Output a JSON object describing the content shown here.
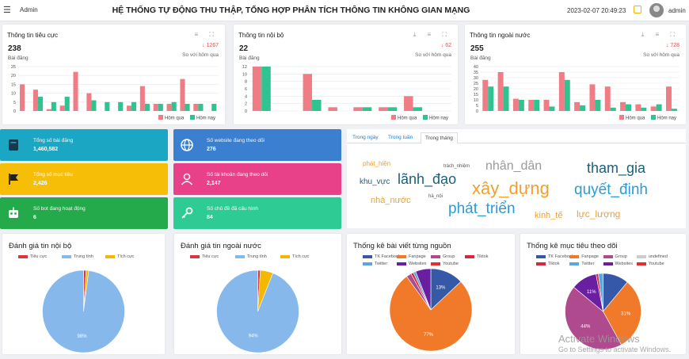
{
  "topbar": {
    "menu_icon": "☰",
    "user_left": "Admin",
    "title": "HỆ THỐNG TỰ ĐỘNG THU THẬP, TỔNG HỢP PHÂN TÍCH THÔNG TIN KHÔNG GIAN MẠNG",
    "datetime": "2023-02-07 20:49:23",
    "user_right": "admin"
  },
  "stats": [
    {
      "title": "Thông tin tiêu cực",
      "tools": "≡ ⛶",
      "total": "238",
      "unit": "Bài đăng",
      "delta": "↓ 1267",
      "compare": "So với hôm qua",
      "ymax": 25,
      "yticks": [
        "25",
        "20",
        "15",
        "10",
        "5",
        "0"
      ],
      "legend": [
        "Hôm qua",
        "Hôm nay"
      ],
      "colors": [
        "#f07c86",
        "#2ec38f"
      ],
      "series": [
        {
          "name": "Hôm qua",
          "values": [
            15,
            12,
            1,
            3,
            22,
            10,
            0,
            0,
            3,
            14,
            4,
            4,
            18,
            4,
            0
          ]
        },
        {
          "name": "Hôm nay",
          "values": [
            0,
            8,
            5,
            8,
            0,
            6,
            5,
            5,
            5,
            4,
            4,
            5,
            4,
            4,
            4
          ]
        }
      ]
    },
    {
      "title": "Thông tin nội bộ",
      "tools": "⤓ ≡ ⛶",
      "total": "22",
      "unit": "Bài đăng",
      "delta": "↓ 62",
      "compare": "So với hôm qua",
      "ymax": 12,
      "yticks": [
        "12",
        "10",
        "8",
        "6",
        "4",
        "2",
        "0"
      ],
      "legend": [
        "Hôm qua",
        "Hôm nay"
      ],
      "colors": [
        "#f07c86",
        "#2ec38f"
      ],
      "series": [
        {
          "name": "Hôm qua",
          "values": [
            12,
            0,
            10,
            1,
            1,
            1,
            4,
            0
          ]
        },
        {
          "name": "Hôm nay",
          "values": [
            12,
            0,
            3,
            0,
            1,
            1,
            1,
            0
          ]
        }
      ]
    },
    {
      "title": "Thông tin ngoài nước",
      "tools": "⤓ ≡ ⛶",
      "total": "255",
      "unit": "Bài đăng",
      "delta": "↓ 728",
      "compare": "So với hôm qua",
      "ymax": 40,
      "yticks": [
        "40",
        "35",
        "30",
        "25",
        "20",
        "15",
        "10",
        "5",
        "0"
      ],
      "legend": [
        "Hôm qua",
        "Hôm nay"
      ],
      "colors": [
        "#f07c86",
        "#2ec38f"
      ],
      "series": [
        {
          "name": "Hôm qua",
          "values": [
            28,
            35,
            11,
            10,
            10,
            35,
            8,
            24,
            22,
            8,
            6,
            4,
            22
          ]
        },
        {
          "name": "Hôm nay",
          "values": [
            22,
            22,
            10,
            10,
            4,
            28,
            5,
            10,
            3,
            6,
            3,
            6,
            2
          ]
        }
      ]
    }
  ],
  "tiles": [
    {
      "label": "Tổng số bài đăng",
      "value": "1,460,582",
      "color": "#1ba7c4",
      "icon": "book-icon"
    },
    {
      "label": "Số website đang theo dõi",
      "value": "276",
      "color": "#3a7fd0",
      "icon": "globe-icon"
    },
    {
      "label": "Tổng số mục tiêu",
      "value": "2,426",
      "color": "#f7be08",
      "icon": "flag-icon"
    },
    {
      "label": "Số tài khoản đang theo dõi",
      "value": "2,147",
      "color": "#e8418a",
      "icon": "user-icon"
    },
    {
      "label": "Số bot đang hoạt động",
      "value": "6",
      "color": "#24aa4a",
      "icon": "robot-icon"
    },
    {
      "label": "Số chủ đề đã cấu hình",
      "value": "84",
      "color": "#2ecc94",
      "icon": "key-icon"
    }
  ],
  "word_cloud": {
    "tabs": [
      "Trong ngày",
      "Trong tuần",
      "Trong tháng"
    ],
    "active_tab": 2,
    "words": [
      {
        "text": "phát_hiện",
        "color": "#f0a030",
        "size": 8
      },
      {
        "text": "trách_nhiệm",
        "color": "#555",
        "size": 6
      },
      {
        "text": "nhân_dân",
        "color": "#9a9a9a",
        "size": 16
      },
      {
        "text": "tham_gia",
        "color": "#1b5f7a",
        "size": 18
      },
      {
        "text": "khu_vực",
        "color": "#1b5f7a",
        "size": 10
      },
      {
        "text": "lãnh_đạo",
        "color": "#1b5f7a",
        "size": 18
      },
      {
        "text": "xây_dựng",
        "color": "#f0a030",
        "size": 22
      },
      {
        "text": "quyết_định",
        "color": "#2b9bd6",
        "size": 19
      },
      {
        "text": "nhà_nước",
        "color": "#f0a030",
        "size": 11
      },
      {
        "text": "hà_nội",
        "color": "#555",
        "size": 6
      },
      {
        "text": "phát_triển",
        "color": "#2b9bd6",
        "size": 19
      },
      {
        "text": "kinh_tế",
        "color": "#f0a030",
        "size": 11
      },
      {
        "text": "lực_lượng",
        "color": "#f0a030",
        "size": 12
      }
    ]
  },
  "pies": [
    {
      "title": "Đánh giá tin nội bộ",
      "legend": [
        {
          "name": "Tiêu cực",
          "color": "#d9363e"
        },
        {
          "name": "Trung tính",
          "color": "#86b8ec"
        },
        {
          "name": "Tích cực",
          "color": "#f5b800"
        }
      ],
      "slices": [
        {
          "name": "Tiêu cực",
          "value": 1,
          "color": "#d9363e",
          "label": ""
        },
        {
          "name": "Tích cực",
          "value": 1,
          "color": "#f5b800",
          "label": ""
        },
        {
          "name": "Trung tính",
          "value": 98,
          "color": "#86b8ec",
          "label": "98%"
        }
      ]
    },
    {
      "title": "Đánh giá tin ngoài nước",
      "legend": [
        {
          "name": "Tiêu cực",
          "color": "#d9363e"
        },
        {
          "name": "Trung tính",
          "color": "#86b8ec"
        },
        {
          "name": "Tích cực",
          "color": "#f5b800"
        }
      ],
      "slices": [
        {
          "name": "Tiêu cực",
          "value": 1,
          "color": "#d9363e",
          "label": ""
        },
        {
          "name": "Tích cực",
          "value": 5,
          "color": "#f5b800",
          "label": ""
        },
        {
          "name": "Trung tính",
          "value": 94,
          "color": "#86b8ec",
          "label": "94%"
        }
      ]
    },
    {
      "title": "Thống kê bài viết từng nguồn",
      "legend": [
        {
          "name": "TK Facebook",
          "color": "#3559a7"
        },
        {
          "name": "Fanpage",
          "color": "#f07a2a"
        },
        {
          "name": "Group",
          "color": "#b04a8e"
        },
        {
          "name": "Tiktok",
          "color": "#d8283c"
        },
        {
          "name": "Twitter",
          "color": "#5aa7e0"
        },
        {
          "name": "Websites",
          "color": "#6a1fa0"
        },
        {
          "name": "Youtube",
          "color": "#e03030"
        }
      ],
      "slices": [
        {
          "name": "TK Facebook",
          "value": 13,
          "color": "#3559a7",
          "label": "13%"
        },
        {
          "name": "Fanpage",
          "value": 77,
          "color": "#f07a2a",
          "label": "77%"
        },
        {
          "name": "Group",
          "value": 2,
          "color": "#b04a8e",
          "label": ""
        },
        {
          "name": "Tiktok",
          "value": 1,
          "color": "#d8283c",
          "label": ""
        },
        {
          "name": "Twitter",
          "value": 1,
          "color": "#5aa7e0",
          "label": ""
        },
        {
          "name": "Websites",
          "value": 6,
          "color": "#6a1fa0",
          "label": ""
        }
      ]
    },
    {
      "title": "Thống kê mục tiêu theo dõi",
      "legend": [
        {
          "name": "TK Facebook",
          "color": "#3559a7"
        },
        {
          "name": "Fanpage",
          "color": "#f07a2a"
        },
        {
          "name": "Group",
          "color": "#b04a8e"
        },
        {
          "name": "undefined",
          "color": "#cccccc"
        },
        {
          "name": "Tiktok",
          "color": "#d8283c"
        },
        {
          "name": "Twitter",
          "color": "#5aa7e0"
        },
        {
          "name": "Websites",
          "color": "#6a1fa0"
        },
        {
          "name": "Youtube",
          "color": "#e03030"
        }
      ],
      "slices": [
        {
          "name": "TK Facebook",
          "value": 11,
          "color": "#3559a7",
          "label": ""
        },
        {
          "name": "Fanpage",
          "value": 31,
          "color": "#f07a2a",
          "label": "31%"
        },
        {
          "name": "Group",
          "value": 44,
          "color": "#b04a8e",
          "label": "44%"
        },
        {
          "name": "Websites",
          "value": 11,
          "color": "#6a1fa0",
          "label": "11%"
        },
        {
          "name": "Tiktok",
          "value": 1,
          "color": "#d8283c",
          "label": ""
        },
        {
          "name": "Twitter",
          "value": 2,
          "color": "#5aa7e0",
          "label": ""
        }
      ]
    }
  ],
  "watermark": {
    "line1": "Activate Windows",
    "line2": "Go to Settings to activate Windows."
  }
}
